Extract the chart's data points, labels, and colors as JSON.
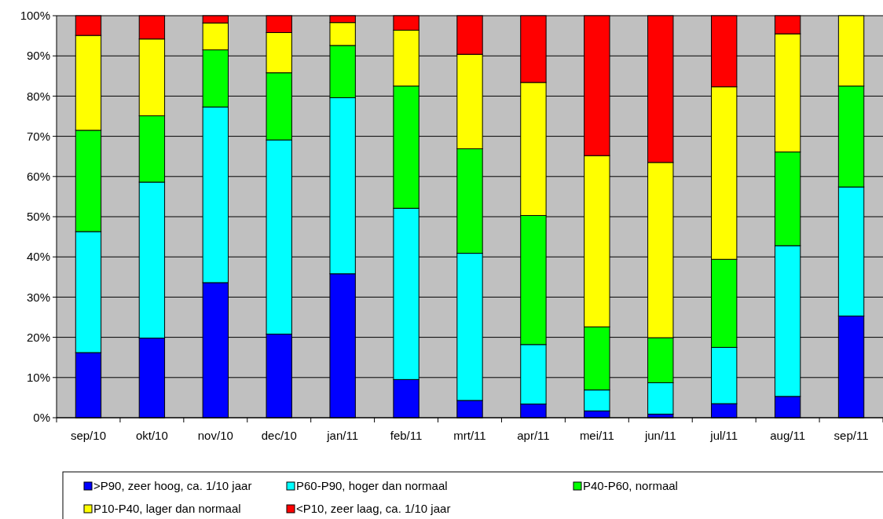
{
  "chart_data": {
    "type": "bar",
    "stacked": true,
    "categories": [
      "sep/10",
      "okt/10",
      "nov/10",
      "dec/10",
      "jan/11",
      "feb/11",
      "mrt/11",
      "apr/11",
      "mei/11",
      "jun/11",
      "jul/11",
      "aug/11",
      "sep/11"
    ],
    "series": [
      {
        "name": ">P90, zeer hoog, ca. 1/10 jaar",
        "color": "#0000ff",
        "values": [
          16.2,
          19.8,
          33.6,
          20.8,
          35.8,
          9.5,
          4.3,
          3.4,
          1.7,
          0.9,
          3.5,
          5.3,
          25.3
        ]
      },
      {
        "name": "P60-P90, hoger dan normaal",
        "color": "#00ffff",
        "values": [
          30.1,
          38.8,
          43.7,
          48.3,
          43.8,
          42.6,
          36.6,
          14.8,
          5.2,
          7.8,
          14.0,
          37.5,
          32.1
        ]
      },
      {
        "name": "P40-P60, normaal",
        "color": "#00ff00",
        "values": [
          25.2,
          16.5,
          14.2,
          16.7,
          13.0,
          30.4,
          26.0,
          32.1,
          15.7,
          11.2,
          21.9,
          23.3,
          25.1
        ]
      },
      {
        "name": "P10-P40, lager dan normaal",
        "color": "#ffff00",
        "values": [
          23.6,
          19.1,
          6.7,
          10.0,
          5.7,
          13.9,
          23.5,
          33.1,
          42.6,
          43.6,
          42.9,
          29.4,
          17.5
        ]
      },
      {
        "name": "<P10, zeer laag, ca. 1/10 jaar",
        "color": "#ff0000",
        "values": [
          4.9,
          5.8,
          1.8,
          4.2,
          1.7,
          3.6,
          9.6,
          16.6,
          34.8,
          36.5,
          17.7,
          4.5,
          0
        ]
      }
    ],
    "ylim": [
      0,
      100
    ],
    "yticks": [
      {
        "value": 0,
        "label": "0%"
      },
      {
        "value": 10,
        "label": "10%"
      },
      {
        "value": 20,
        "label": "20%"
      },
      {
        "value": 30,
        "label": "30%"
      },
      {
        "value": 40,
        "label": "40%"
      },
      {
        "value": 50,
        "label": "50%"
      },
      {
        "value": 60,
        "label": "60%"
      },
      {
        "value": 70,
        "label": "70%"
      },
      {
        "value": 80,
        "label": "80%"
      },
      {
        "value": 90,
        "label": "90%"
      },
      {
        "value": 100,
        "label": "100%"
      }
    ],
    "grid": "y",
    "legend": "bottom"
  }
}
